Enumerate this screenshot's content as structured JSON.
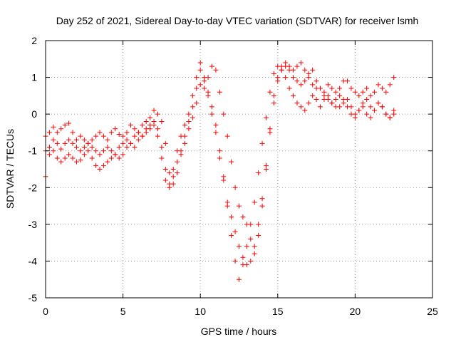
{
  "chart_data": {
    "type": "scatter",
    "title": "Day 252 of 2021, Sidereal Day-to-day VTEC variation (SDTVAR) for receiver lsmh",
    "xlabel": "GPS time / hours",
    "ylabel": "SDTVAR / TECUs",
    "xlim": [
      0,
      25
    ],
    "ylim": [
      -5,
      2
    ],
    "xticks": [
      0,
      5,
      10,
      15,
      20,
      25
    ],
    "yticks": [
      -5,
      -4,
      -3,
      -2,
      -1,
      0,
      1,
      2
    ],
    "grid": true,
    "marker": "plus",
    "color": "#ff0000",
    "series": [
      {
        "x": [
          0,
          0.25,
          0.5,
          0.75,
          1,
          1.25,
          1.5,
          1.75,
          2,
          2.25,
          2.5,
          2.75,
          3,
          3.25,
          3.5,
          3.75,
          4,
          4.25,
          4.5,
          4.75,
          5,
          5.25,
          5.5,
          5.75,
          6,
          6.25,
          6.5,
          6.75,
          7,
          7.25,
          7.5,
          7.75,
          8,
          8.25,
          8.5,
          8.75,
          9,
          9.25,
          9.5,
          9.75,
          10,
          10.25,
          10.5,
          10.75,
          11,
          11.25,
          11.5,
          11.75,
          12,
          12.25,
          12.5,
          12.75,
          13,
          13.25,
          13.5,
          13.75,
          14,
          14.25,
          14.5,
          14.75,
          15,
          15.25,
          15.5,
          15.75,
          16,
          16.25,
          16.5,
          16.75,
          17,
          17.25,
          17.5,
          17.75,
          18,
          18.25,
          18.5,
          18.75,
          19,
          19.25,
          19.5,
          19.75,
          20,
          20.25,
          20.5,
          20.75,
          21,
          21.25,
          21.5,
          21.75,
          22,
          22.25,
          22.5
        ],
        "y": [
          -0.6,
          -0.5,
          -0.35,
          -0.5,
          -0.4,
          -0.3,
          -0.25,
          -0.5,
          -0.7,
          -0.6,
          -0.7,
          -0.8,
          -0.7,
          -0.6,
          -0.5,
          -0.6,
          -0.7,
          -0.5,
          -0.4,
          -0.55,
          -0.6,
          -0.5,
          -0.3,
          -0.4,
          -0.5,
          -0.3,
          -0.2,
          -0.1,
          0.1,
          0.0,
          -0.2,
          -0.8,
          -1.6,
          -1.9,
          -1.6,
          -1.1,
          -0.8,
          -0.4,
          -0.1,
          0.3,
          0.8,
          0.7,
          1.0,
          1.3,
          1.2,
          0.6,
          0.0,
          -0.6,
          -1.3,
          -2.0,
          -2.5,
          -2.8,
          -3.0,
          -3.4,
          -3.8,
          -3.3,
          -2.5,
          -1.5,
          -0.4,
          0.5,
          1.0,
          1.3,
          1.4,
          1.3,
          1.2,
          1.3,
          1.4,
          1.2,
          1.0,
          0.8,
          0.7,
          0.7,
          0.6,
          0.8,
          0.7,
          0.6,
          0.7,
          0.9,
          0.9,
          0.7,
          0.6,
          0.5,
          0.6,
          0.7,
          0.5,
          0.6,
          0.8,
          0.7,
          0.6,
          0.8,
          1.0
        ]
      },
      {
        "x": [
          0,
          0.25,
          0.5,
          0.75,
          1,
          1.25,
          1.5,
          1.75,
          2,
          2.25,
          2.5,
          2.75,
          3,
          3.25,
          3.5,
          3.75,
          4,
          4.25,
          4.5,
          4.75,
          5,
          5.25,
          5.5,
          5.75,
          6,
          6.25,
          6.5,
          6.75,
          7,
          7.25,
          7.5,
          7.75,
          8,
          8.25,
          8.5,
          8.75,
          9,
          9.25,
          9.5,
          9.75,
          10,
          10.25,
          10.5,
          10.75,
          11,
          11.25,
          11.5,
          11.75,
          12,
          12.25,
          12.5,
          12.75,
          13,
          13.25,
          13.5,
          13.75,
          14,
          14.25,
          14.5,
          14.75,
          15,
          15.25,
          15.5,
          15.75,
          16,
          16.25,
          16.5,
          16.75,
          17,
          17.25,
          17.5,
          17.75,
          18,
          18.25,
          18.5,
          18.75,
          19,
          19.25,
          19.5,
          19.75,
          20,
          20.25,
          20.5,
          20.75,
          21,
          21.25,
          21.5,
          21.75,
          22,
          22.25,
          22.5
        ],
        "y": [
          -1.0,
          -0.9,
          -0.7,
          -0.8,
          -0.95,
          -0.8,
          -0.7,
          -0.8,
          -0.9,
          -1.0,
          -0.9,
          -0.8,
          -0.9,
          -1.0,
          -1.1,
          -1.0,
          -0.9,
          -1.0,
          -1.1,
          -0.9,
          -0.8,
          -0.7,
          -0.8,
          -0.6,
          -0.5,
          -0.6,
          -0.4,
          -0.3,
          -0.2,
          -0.4,
          -0.9,
          -1.5,
          -2.0,
          -1.7,
          -1.3,
          -1.0,
          -0.6,
          -0.2,
          0.2,
          0.7,
          1.2,
          0.9,
          0.5,
          0.0,
          -0.5,
          -1.2,
          -1.8,
          -2.4,
          -2.8,
          -3.2,
          -3.6,
          -3.9,
          -4.1,
          -4.0,
          -3.6,
          -3.0,
          -2.3,
          -1.4,
          -0.5,
          0.3,
          0.9,
          1.2,
          1.3,
          1.2,
          1.0,
          0.9,
          0.8,
          0.9,
          1.1,
          1.2,
          0.9,
          0.7,
          0.5,
          0.4,
          0.3,
          0.4,
          0.2,
          0.3,
          0.4,
          0.2,
          0.0,
          0.1,
          0.3,
          0.4,
          0.2,
          0.1,
          0.3,
          0.2,
          0.0,
          -0.1,
          0.0
        ]
      },
      {
        "x": [
          0,
          0.25,
          0.5,
          0.75,
          1,
          1.25,
          1.5,
          1.75,
          2,
          2.25,
          2.5,
          2.75,
          3,
          3.25,
          3.5,
          3.75,
          4,
          4.25,
          4.5,
          4.75,
          5,
          5.25,
          5.5,
          5.75,
          6,
          6.25,
          6.5,
          6.75,
          7,
          7.25,
          7.5,
          7.75,
          8,
          8.25,
          8.5,
          8.75,
          9,
          9.25,
          9.5,
          9.75,
          10,
          10.25,
          10.5,
          10.75,
          11,
          11.25,
          11.5,
          11.75,
          12,
          12.25,
          12.5,
          12.75,
          13,
          13.25,
          13.5,
          13.75,
          14,
          14.25,
          14.5,
          14.75,
          15,
          15.25,
          15.5,
          15.75,
          16,
          16.25,
          16.5,
          16.75,
          17,
          17.25,
          17.5,
          17.75,
          18,
          18.25,
          18.5,
          18.75,
          19,
          19.25,
          19.5,
          19.75,
          20,
          20.25,
          20.5,
          20.75,
          21,
          21.25,
          21.5,
          21.75,
          22,
          22.25,
          22.5
        ],
        "y": [
          -1.7,
          -1.1,
          -1.0,
          -1.2,
          -1.3,
          -1.2,
          -1.1,
          -1.2,
          -1.3,
          -1.25,
          -1.1,
          -1.0,
          -1.2,
          -1.4,
          -1.5,
          -1.4,
          -1.3,
          -1.2,
          -1.1,
          -1.2,
          -1.1,
          -0.9,
          -0.8,
          -0.9,
          -0.7,
          -0.6,
          -0.5,
          -0.4,
          -0.3,
          -0.6,
          -1.2,
          -1.8,
          -1.9,
          -1.5,
          -1.0,
          -0.6,
          -0.3,
          0.0,
          0.5,
          1.0,
          1.4,
          1.0,
          0.6,
          0.2,
          -0.3,
          -1.0,
          -1.7,
          -2.5,
          -3.3,
          -4.0,
          -4.5,
          -4.1,
          -3.6,
          -3.0,
          -2.4,
          -1.6,
          -0.8,
          -0.1,
          0.6,
          1.1,
          1.3,
          1.2,
          1.0,
          0.7,
          0.5,
          0.3,
          0.2,
          0.1,
          0.3,
          0.5,
          0.4,
          0.2,
          0.4,
          0.5,
          0.3,
          0.2,
          0.5,
          0.4,
          0.2,
          0.0,
          -0.1,
          0.1,
          0.2,
          0.0,
          -0.1,
          0.1,
          0.3,
          0.2,
          0.0,
          -0.1,
          0.1
        ]
      }
    ]
  }
}
